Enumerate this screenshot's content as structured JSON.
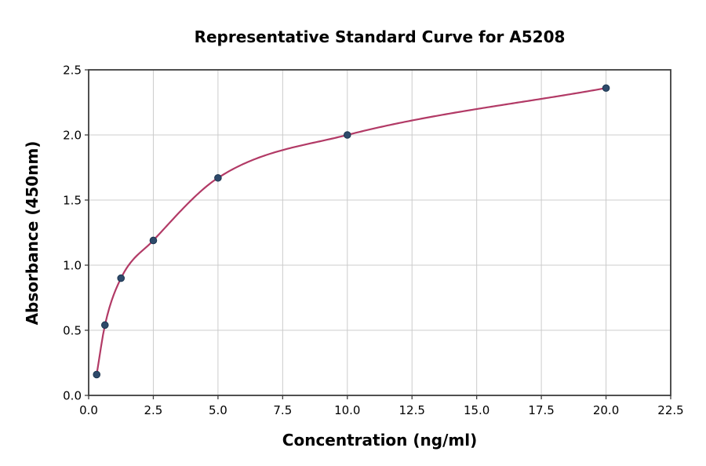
{
  "figure": {
    "background": "#ffffff"
  },
  "chart_data": {
    "type": "scatter",
    "title": "Representative Standard Curve for A5208",
    "xlabel": "Concentration (ng/ml)",
    "ylabel": "Absorbance (450nm)",
    "xlim": [
      0,
      22.5
    ],
    "ylim": [
      0,
      2.5
    ],
    "x_ticks": [
      0.0,
      2.5,
      5.0,
      7.5,
      10.0,
      12.5,
      15.0,
      17.5,
      20.0,
      22.5
    ],
    "y_ticks": [
      0.0,
      0.5,
      1.0,
      1.5,
      2.0,
      2.5
    ],
    "grid": true,
    "grid_color": "#cccccc",
    "spine_color": "#3d3d3d",
    "tick_color": "#3d3d3d",
    "text_color": "#000000",
    "legend": "none",
    "series": [
      {
        "x": [
          0.31,
          0.63,
          1.25,
          2.5,
          5.0,
          10.0,
          20.0
        ],
        "y": [
          0.16,
          0.54,
          0.9,
          1.19,
          1.67,
          2.0,
          2.36
        ],
        "marker_color": "#2e4a6b",
        "marker_edge_color": "#1d3650",
        "line_color": "#b23a66"
      }
    ]
  }
}
